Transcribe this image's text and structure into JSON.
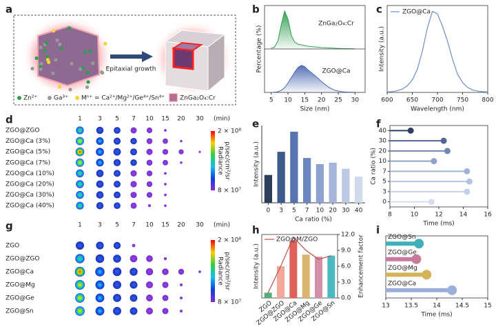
{
  "schematic": {
    "panel": "a",
    "arrow_label": "Epitaxial growth",
    "legend": [
      "Zn²⁺",
      "Ga³⁺",
      "Mⁿ⁺ = Ca²⁺/Mg²⁺/Ge⁴⁺/Sn⁴⁺",
      "ZnGa₂O₄:Cr"
    ]
  },
  "imaging": [
    {
      "panel": "d",
      "columns": [
        "1",
        "3",
        "5",
        "7",
        "10",
        "15",
        "20",
        "30"
      ],
      "unit": "(min)",
      "rows": [
        "ZGO@ZGO",
        "ZGO@Ca (3%)",
        "ZGO@Ca (5%)",
        "ZGO@Ca (7%)",
        "ZGO@Ca (10%)",
        "ZGO@Ca (20%)",
        "ZGO@Ca (30%)",
        "ZGO@Ca (40%)"
      ],
      "colorbar": {
        "title": "Radiance",
        "unit": "p/sec/cm²/sr",
        "max": "2 × 10⁸",
        "min": "8 × 10⁷"
      }
    },
    {
      "panel": "g",
      "columns": [
        "1",
        "3",
        "5",
        "7",
        "10",
        "15",
        "20",
        "30"
      ],
      "unit": "(min)",
      "rows": [
        "ZGO",
        "ZGO@ZGO",
        "ZGO@Ca",
        "ZGO@Mg",
        "ZGO@Ge",
        "ZGO@Sn"
      ],
      "colorbar": {
        "title": "Radiance",
        "unit": "p/sec/cm²/sr",
        "max": "2 × 10⁸",
        "min": "8 × 10⁷"
      }
    }
  ],
  "chart_data": [
    {
      "panel": "b",
      "type": "area",
      "xlabel": "Size (nm)",
      "ylabel": "Percentage (%)",
      "x": [
        5,
        6,
        7,
        8,
        9,
        10,
        11,
        12,
        13,
        14,
        15,
        16,
        18,
        20,
        22,
        24,
        26,
        28,
        30
      ],
      "series": [
        {
          "name": "ZnGa₂O₄:Cr",
          "color": "#2e9e4f",
          "values": [
            0.5,
            1.5,
            6,
            18,
            28,
            22,
            10,
            5,
            3.5,
            3,
            2.5,
            2,
            1.5,
            1,
            0.8,
            0.5,
            0.3,
            0.2,
            0.1
          ]
        },
        {
          "name": "ZGO@Ca",
          "color": "#4a68b0",
          "values": [
            0,
            0.2,
            0.5,
            1.5,
            3.5,
            7,
            11,
            15,
            18.5,
            20,
            19,
            16.5,
            12.5,
            8,
            4,
            1.5,
            0.5,
            0.2,
            0.1
          ]
        }
      ],
      "xlim": [
        3,
        33
      ],
      "xticks": [
        5,
        10,
        15,
        20,
        25,
        30
      ],
      "ylim": [
        0,
        30
      ]
    },
    {
      "panel": "c",
      "type": "line",
      "xlabel": "Wavelength (nm)",
      "ylabel": "Intensity (a.u.)",
      "x": [
        600,
        610,
        620,
        630,
        640,
        650,
        660,
        670,
        680,
        690,
        700,
        710,
        720,
        730,
        740,
        750,
        760,
        770,
        780,
        790,
        800
      ],
      "series": [
        {
          "name": "ZGO@Ca",
          "color": "#6d8cc8",
          "values": [
            0.5,
            1,
            2,
            4,
            8,
            15,
            28,
            50,
            78,
            98,
            95,
            80,
            62,
            40,
            22,
            12,
            6,
            3,
            1.5,
            1,
            0.5
          ]
        }
      ],
      "xlim": [
        600,
        800
      ],
      "xticks": [
        600,
        650,
        700,
        750,
        800
      ],
      "ylim": [
        0,
        105
      ]
    },
    {
      "panel": "e",
      "type": "bar",
      "xlabel": "Ca ratio (%)",
      "ylabel": "Intensity (a.u.)",
      "categories": [
        "0",
        "3",
        "5",
        "7",
        "10",
        "20",
        "30",
        "40"
      ],
      "values": [
        36,
        66,
        92,
        58,
        50,
        52,
        44,
        34
      ],
      "colors": [
        "#2c3e5c",
        "#3d5a8a",
        "#5674b0",
        "#6c87c0",
        "#8ea2d0",
        "#a5b5da",
        "#bcc8e4",
        "#d2daee"
      ],
      "ylim": [
        0,
        100
      ]
    },
    {
      "panel": "f",
      "type": "lollipop",
      "xlabel": "Time (ms)",
      "ylabel": "Ca ratio (%)",
      "categories": [
        "0",
        "3",
        "5",
        "7",
        "10",
        "20",
        "30",
        "40"
      ],
      "values": [
        11.4,
        14.3,
        14.5,
        14.3,
        11.6,
        12.7,
        12.4,
        9.7
      ],
      "colors": [
        "#d6deee",
        "#c4d0e8",
        "#b3c2e0",
        "#a0b3d8",
        "#8ea2cc",
        "#6e86b4",
        "#4f6790",
        "#2f3f5e"
      ],
      "xlim": [
        8,
        16
      ],
      "xticks": [
        8,
        10,
        12,
        14,
        16
      ]
    },
    {
      "panel": "h",
      "type": "combo",
      "ylabel": "Intensity (a.u.)",
      "y2label": "Enhancement factor",
      "categories": [
        "ZGO",
        "ZGO@ZGO",
        "ZGO@Ca",
        "ZGO@Mg",
        "ZGO@Ge",
        "ZGO@Sn"
      ],
      "values": [
        1.0,
        6.0,
        10.8,
        8.2,
        7.8,
        8.0
      ],
      "colors": [
        "#5aaa7a",
        "#f4a89a",
        "#e0605a",
        "#d9b56f",
        "#d48fa8",
        "#4cb8c0"
      ],
      "ylim": [
        0,
        12
      ],
      "series": [
        {
          "name": "ZGO@M/ZGO",
          "color": "#c0504d",
          "axis": "y2",
          "values": [
            1.0,
            6.0,
            11.5,
            9.0,
            7.3,
            8.0
          ]
        }
      ],
      "y2lim": [
        0,
        12
      ],
      "y2ticks": [
        {
          "value": 0,
          "label": "0.0"
        },
        {
          "value": 3,
          "label": "3.0"
        },
        {
          "value": 6,
          "label": "6.0"
        },
        {
          "value": 9,
          "label": "9.0"
        },
        {
          "value": 12,
          "label": "12.0"
        }
      ]
    },
    {
      "panel": "i",
      "type": "lollipop",
      "xlabel": "Time (ms)",
      "category_labels": "inline",
      "categories": [
        "ZGO@Ca",
        "ZGO@Mg",
        "ZGO@Ge",
        "ZGO@Sn"
      ],
      "values": [
        14.3,
        13.8,
        13.6,
        13.65
      ],
      "colors": [
        "#9bb0d8",
        "#d4b35a",
        "#c97a9a",
        "#3fb0b8"
      ],
      "xlim": [
        13,
        15
      ],
      "xticks": [
        13,
        13.5,
        14,
        14.5,
        15
      ]
    }
  ]
}
